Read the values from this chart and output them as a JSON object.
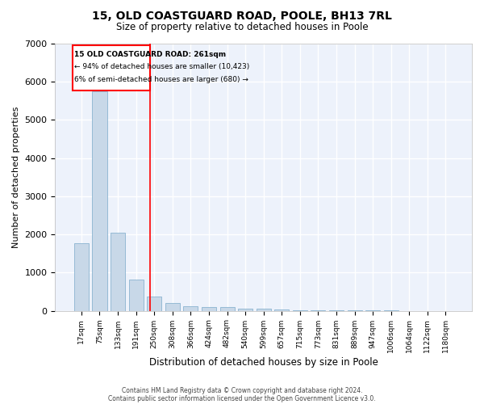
{
  "title_line1": "15, OLD COASTGUARD ROAD, POOLE, BH13 7RL",
  "title_line2": "Size of property relative to detached houses in Poole",
  "xlabel": "Distribution of detached houses by size in Poole",
  "ylabel": "Number of detached properties",
  "bar_color": "#c8d8e8",
  "bar_edge_color": "#7aaaca",
  "background_color": "#edf2fb",
  "grid_color": "#ffffff",
  "categories": [
    "17sqm",
    "75sqm",
    "133sqm",
    "191sqm",
    "250sqm",
    "308sqm",
    "366sqm",
    "424sqm",
    "482sqm",
    "540sqm",
    "599sqm",
    "657sqm",
    "715sqm",
    "773sqm",
    "831sqm",
    "889sqm",
    "947sqm",
    "1006sqm",
    "1064sqm",
    "1122sqm",
    "1180sqm"
  ],
  "values": [
    1760,
    5750,
    2050,
    820,
    370,
    200,
    120,
    100,
    90,
    60,
    50,
    25,
    20,
    10,
    8,
    5,
    4,
    3,
    2,
    2,
    1
  ],
  "ylim": [
    0,
    7000
  ],
  "yticks": [
    0,
    1000,
    2000,
    3000,
    4000,
    5000,
    6000,
    7000
  ],
  "red_line_x": 3.75,
  "annotation_text_line1": "15 OLD COASTGUARD ROAD: 261sqm",
  "annotation_text_line2": "← 94% of detached houses are smaller (10,423)",
  "annotation_text_line3": "6% of semi-detached houses are larger (680) →",
  "footer_line1": "Contains HM Land Registry data © Crown copyright and database right 2024.",
  "footer_line2": "Contains public sector information licensed under the Open Government Licence v3.0."
}
